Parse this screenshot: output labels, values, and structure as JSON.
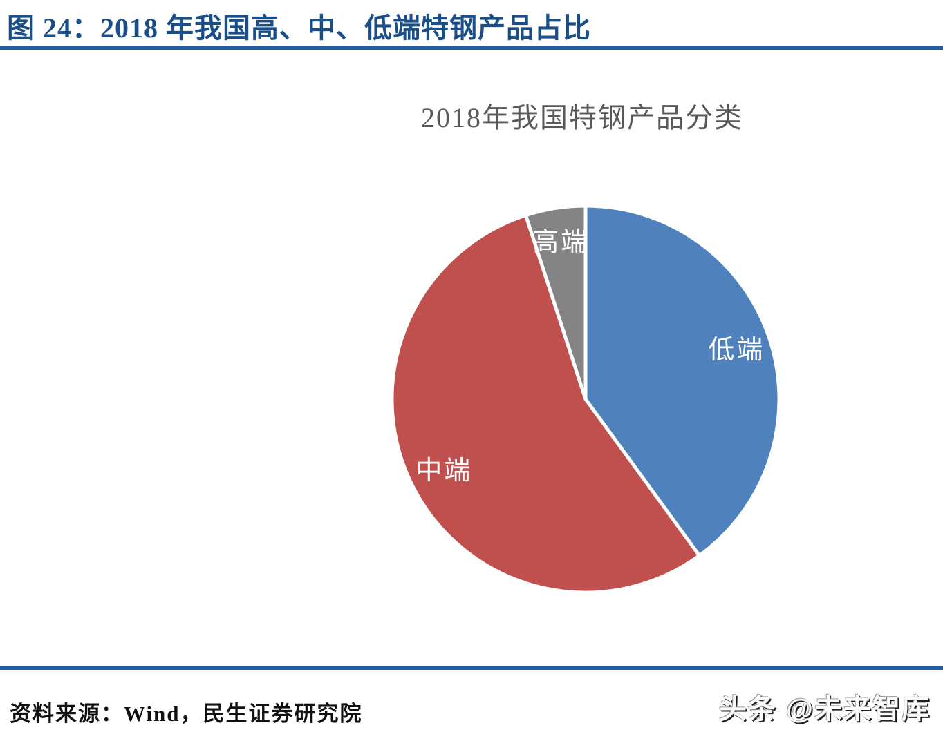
{
  "header": {
    "figure_title": "图 24：2018 年我国高、中、低端特钢产品占比"
  },
  "chart_data": {
    "type": "pie",
    "title": "2018年我国特钢产品分类",
    "categories": [
      "低端",
      "中端",
      "高端"
    ],
    "values": [
      40,
      55,
      5
    ],
    "unit": "percent_share",
    "colors": [
      "#4F81BD",
      "#C0504D",
      "#848484"
    ],
    "start_angle_deg": 0,
    "direction": "clockwise",
    "label_color": "#FFFFFF",
    "slice_border_color": "#FFFFFF",
    "label_radius_ratio": 0.82,
    "legend_position": "none",
    "data_labels": "category_names_inside_slices"
  },
  "footer": {
    "source": "资料来源：Wind，民生证券研究院",
    "watermark": "头条 @未来智库"
  },
  "colors": {
    "figure_title_blue": "#1A4E89",
    "rule_blue": "#1D5FA6",
    "chart_title_gray": "#595959"
  }
}
